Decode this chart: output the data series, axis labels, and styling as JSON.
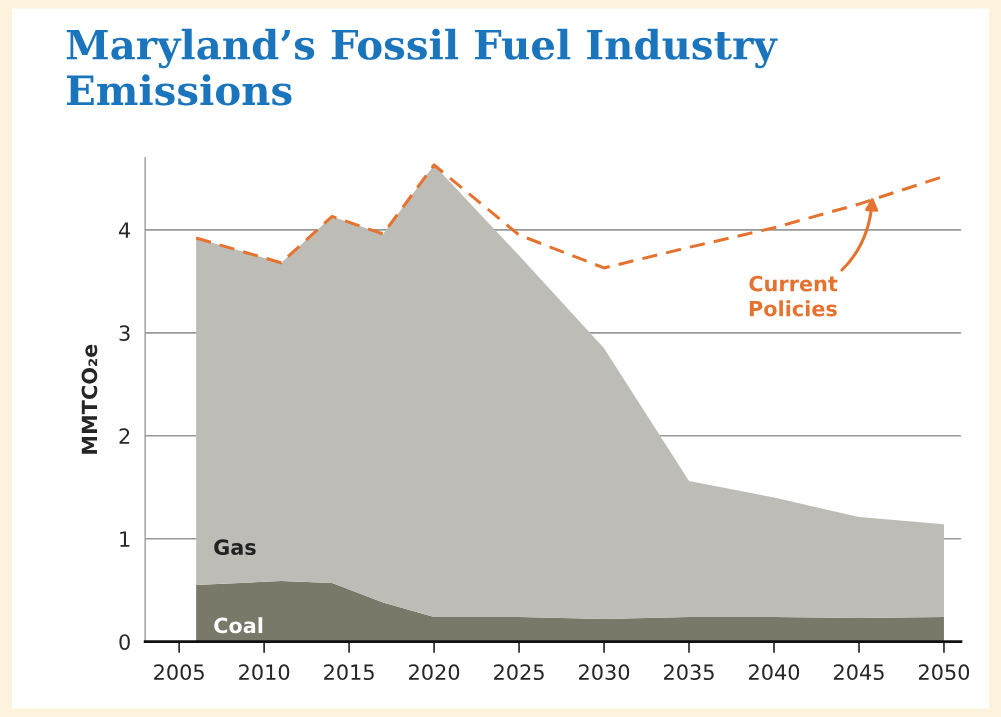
{
  "chart_data": {
    "type": "area",
    "title": "Maryland’s Fossil Fuel Industry Emissions",
    "ylabel": "MMTCO₂e",
    "x": [
      2006,
      2011,
      2014,
      2017,
      2020,
      2025,
      2030,
      2035,
      2040,
      2045,
      2050
    ],
    "stacked": true,
    "series": [
      {
        "name": "Coal",
        "color": "#797869",
        "values": [
          0.55,
          0.59,
          0.57,
          0.38,
          0.24,
          0.24,
          0.22,
          0.24,
          0.24,
          0.23,
          0.24
        ]
      },
      {
        "name": "Gas",
        "color": "#bdbcb6",
        "values": [
          3.37,
          3.09,
          3.56,
          3.58,
          4.39,
          3.51,
          2.63,
          1.32,
          1.16,
          0.98,
          0.9
        ]
      },
      {
        "name": "Current Policies",
        "type": "line",
        "line_style": "dashed",
        "color": "#e57330",
        "x": [
          2006,
          2011,
          2014,
          2017,
          2020,
          2025,
          2030,
          2035,
          2040,
          2045,
          2050
        ],
        "values": [
          3.92,
          3.68,
          4.13,
          3.96,
          4.63,
          3.95,
          3.63,
          3.83,
          4.02,
          4.25,
          4.52
        ]
      }
    ],
    "xlim": [
      2003,
      2051
    ],
    "xticks": [
      2005,
      2010,
      2015,
      2020,
      2025,
      2030,
      2035,
      2040,
      2045,
      2050
    ],
    "ylim": [
      0,
      4.7
    ],
    "yticks": [
      0,
      1,
      2,
      3,
      4
    ],
    "grid": "y",
    "legend": false,
    "marker": "none"
  }
}
